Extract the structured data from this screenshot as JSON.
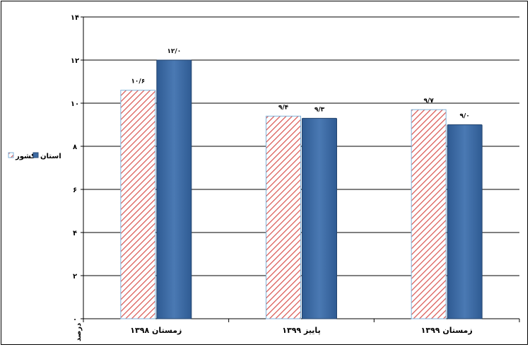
{
  "chart_data": {
    "type": "bar",
    "title": "",
    "xlabel": "",
    "ylabel": "درصد",
    "ylim": [
      0,
      14
    ],
    "yticks": [
      "۰",
      "۲",
      "۴",
      "۶",
      "۸",
      "۱۰",
      "۱۲",
      "۱۴"
    ],
    "ytick_values": [
      0,
      2,
      4,
      6,
      8,
      10,
      12,
      14
    ],
    "categories": [
      "زمستان ۱۳۹۸",
      "پاییز ۱۳۹۹",
      "زمستان ۱۳۹۹"
    ],
    "grid": true,
    "legend_position": "left",
    "series": [
      {
        "name": "کشور",
        "values": [
          10.6,
          9.4,
          9.7
        ],
        "labels": [
          "۱۰/۶",
          "۹/۴",
          "۹/۷"
        ],
        "color": "#d9534f",
        "pattern": "diagonal-hatch"
      },
      {
        "name": "استان",
        "values": [
          12.0,
          9.3,
          9.0
        ],
        "labels": [
          "۱۲/۰",
          "۹/۳",
          "۹/۰"
        ],
        "color": "#3d6aa3"
      }
    ]
  }
}
